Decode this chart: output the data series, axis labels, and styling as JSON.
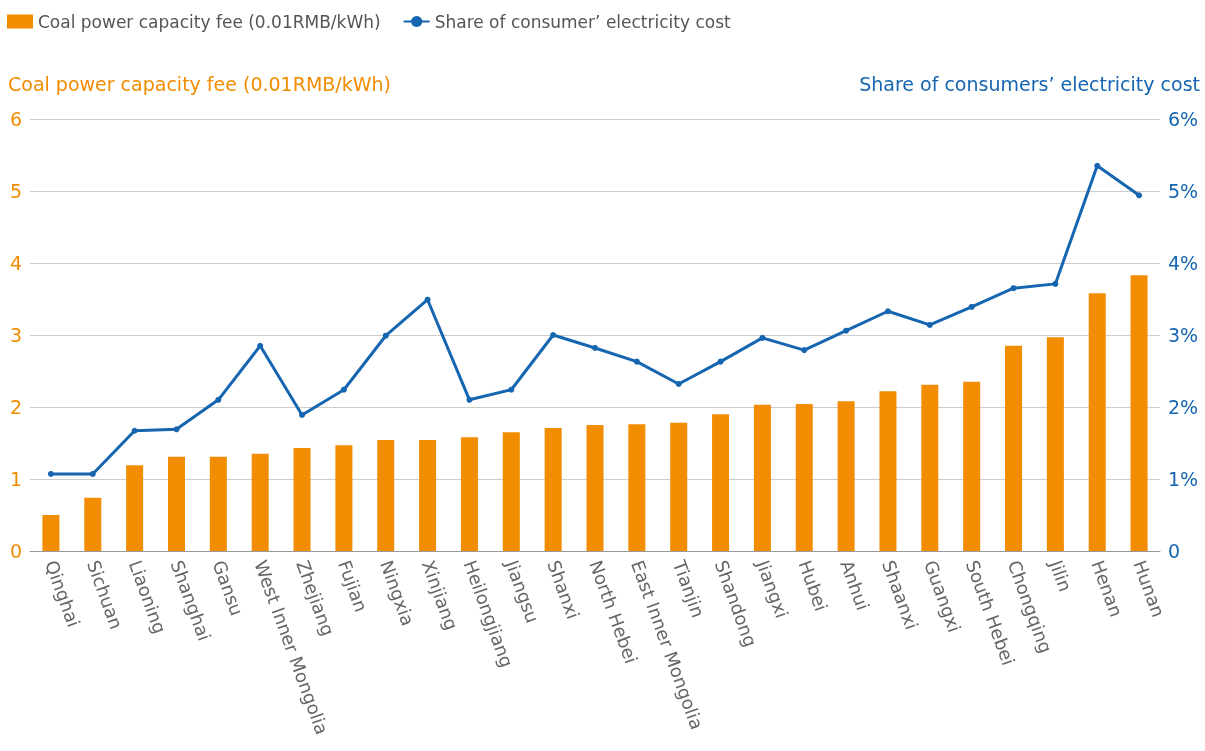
{
  "chart_data": {
    "type": "bar",
    "ylabel": "Coal power capacity fee (0.01RMB/kWh)",
    "y2label": "Share of consumers’ electricity cost",
    "categories": [
      "Qinghai",
      "Sichuan",
      "Liaoning",
      "Shanghai",
      "Gansu",
      "West Inner Mongolia",
      "Zhejiang",
      "Fujian",
      "Ningxia",
      "Xinjiang",
      "Heilongjiang",
      "Jiangsu",
      "Shanxi",
      "North Hebei",
      "East Inner Mongolia",
      "Tianjin",
      "Shandong",
      "Jiangxi",
      "Hubei",
      "Anhui",
      "Shaanxi",
      "Guangxi",
      "South Hebei",
      "Chongqing",
      "Jilin",
      "Henan",
      "Hunan"
    ],
    "series": [
      {
        "name": "Coal power capacity fee (0.01RMB/kWh)",
        "color": "#f28c00",
        "values": [
          0.5,
          0.74,
          1.19,
          1.31,
          1.31,
          1.35,
          1.43,
          1.47,
          1.54,
          1.54,
          1.58,
          1.65,
          1.71,
          1.75,
          1.76,
          1.78,
          1.9,
          2.03,
          2.04,
          2.08,
          2.22,
          2.31,
          2.35,
          2.85,
          2.97,
          3.58,
          3.83
        ]
      },
      {
        "type": "line",
        "axis": "y2",
        "name": "Share of consumer’ electricity cost",
        "color": "#1565b0",
        "marker": "circle",
        "values": [
          1.07,
          1.07,
          1.67,
          1.69,
          2.1,
          2.85,
          1.89,
          2.24,
          2.99,
          3.49,
          2.1,
          2.24,
          3.0,
          2.82,
          2.63,
          2.32,
          2.63,
          2.96,
          2.79,
          3.06,
          3.33,
          3.14,
          3.39,
          3.65,
          3.71,
          5.35,
          4.94
        ]
      }
    ],
    "ylim": [
      0,
      6
    ],
    "yticks": [
      0,
      1,
      2,
      3,
      4,
      5,
      6
    ],
    "y2lim": [
      0,
      6
    ],
    "y2ticks": [
      {
        "value": 0,
        "label": "0"
      },
      {
        "value": 1,
        "label": "1%"
      },
      {
        "value": 2,
        "label": "2%"
      },
      {
        "value": 3,
        "label": "3%"
      },
      {
        "value": 4,
        "label": "4%"
      },
      {
        "value": 5,
        "label": "5%"
      },
      {
        "value": 6,
        "label": "6%"
      }
    ],
    "grid": "y",
    "legend": "top left"
  }
}
